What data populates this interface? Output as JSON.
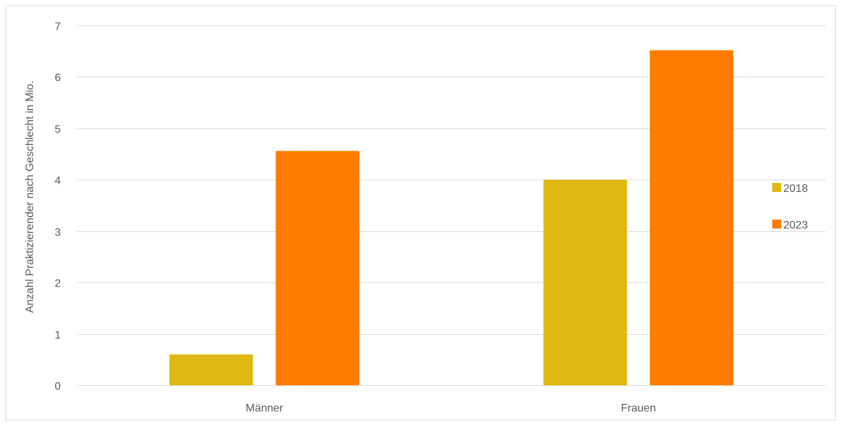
{
  "chart_data": {
    "type": "bar",
    "title": "",
    "xlabel": "",
    "ylabel": "Anzahl Praktizierender nach Geschlecht in Mio.",
    "categories": [
      "Männer",
      "Frauen"
    ],
    "series": [
      {
        "name": "2018",
        "values": [
          0.6,
          4.0
        ],
        "color": "#E0B812"
      },
      {
        "name": "2023",
        "values": [
          4.56,
          6.52
        ],
        "color": "#FF7C00"
      }
    ],
    "ylim": [
      0,
      7
    ],
    "yticks": [
      0,
      1,
      2,
      3,
      4,
      5,
      6,
      7
    ],
    "grid": true,
    "legend_position": "right",
    "gridline_color": "#d9d9d9"
  }
}
